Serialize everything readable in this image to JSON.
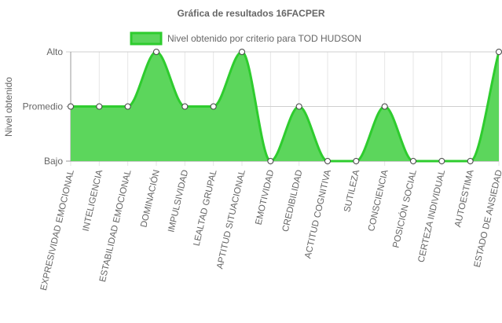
{
  "chart_data": {
    "type": "area",
    "title": "Gráfica de resultados 16FACPER",
    "xlabel": "",
    "ylabel": "Nivel obtenido",
    "y_levels": [
      "Bajo",
      "Promedio",
      "Alto"
    ],
    "ylim": [
      0,
      2
    ],
    "grid": true,
    "legend_position": "top",
    "categories": [
      "EXPRESIVIDAD EMOCIONAL",
      "INTELIGENCIA",
      "ESTABILIDAD EMOCIONAL",
      "DOMINACIÓN",
      "IMPULSIVIDAD",
      "LEALTAD GRUPAL",
      "APTITUD SITUACIONAL",
      "EMOTIVIDAD",
      "CREDIBILIDAD",
      "ACTITUD COGNITIVA",
      "SUTILEZA",
      "CONSCIENCIA",
      "POSICIÓN SOCIAL",
      "CERTEZA INDIVIDUAL",
      "AUTOESTIMA",
      "ESTADO DE ANSIEDAD"
    ],
    "series": [
      {
        "name": "Nivel obtenido por criterio para TOD HUDSON",
        "values": [
          1,
          1,
          1,
          2,
          1,
          1,
          2,
          0,
          1,
          0,
          0,
          1,
          0,
          0,
          0,
          2
        ],
        "line_color": "#2ecc2e",
        "fill_color": "#5cd65c"
      }
    ]
  }
}
